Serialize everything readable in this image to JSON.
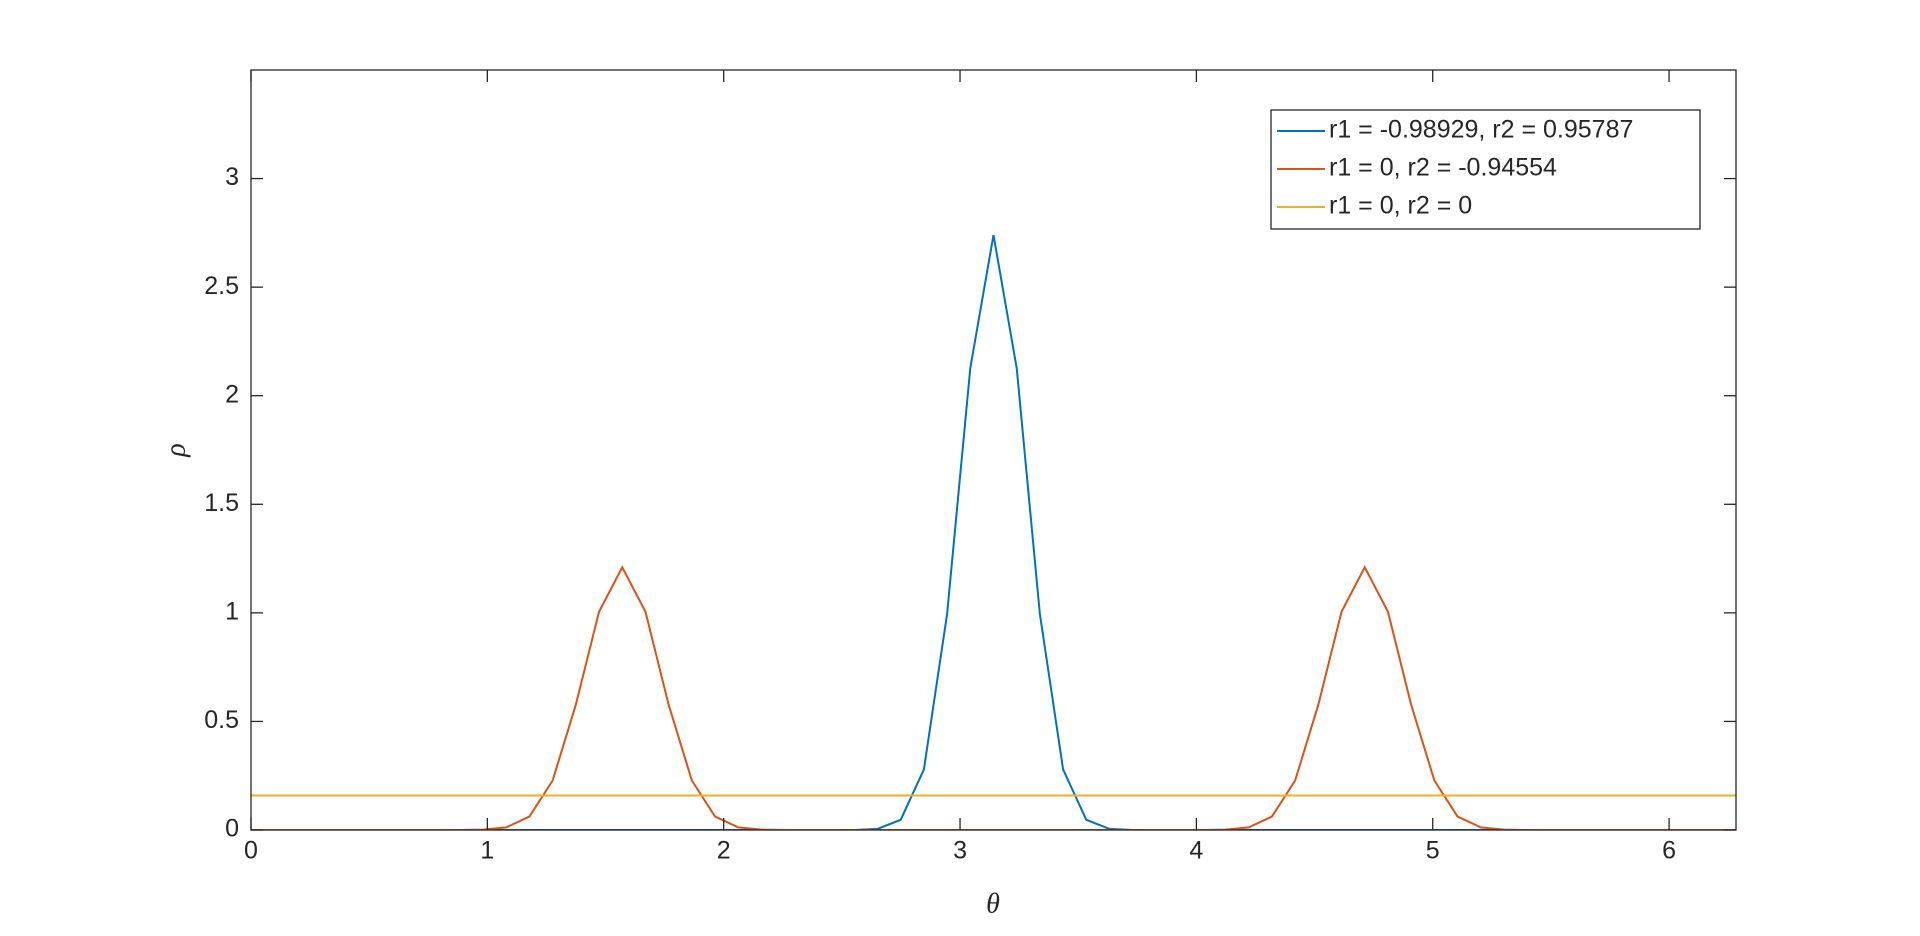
{
  "chart_data": {
    "type": "line",
    "x_label": "θ",
    "y_label": "ρ",
    "xlim": [
      0,
      6.2832
    ],
    "ylim": [
      0,
      3.5
    ],
    "xticks": [
      0,
      1,
      2,
      3,
      4,
      5,
      6
    ],
    "yticks": [
      0,
      0.5,
      1,
      1.5,
      2,
      2.5,
      3
    ],
    "legend": "northeast",
    "x": [
      0,
      0.0982,
      0.1963,
      0.2945,
      0.3927,
      0.4909,
      0.589,
      0.6872,
      0.7854,
      0.8836,
      0.9817,
      1.0799,
      1.1781,
      1.2763,
      1.3744,
      1.4726,
      1.5708,
      1.669,
      1.7671,
      1.8653,
      1.9635,
      2.0617,
      2.1598,
      2.258,
      2.3562,
      2.4544,
      2.5525,
      2.6507,
      2.7489,
      2.8471,
      2.9452,
      3.0434,
      3.1416,
      3.2398,
      3.3379,
      3.4361,
      3.5343,
      3.6325,
      3.7306,
      3.8288,
      3.927,
      4.0252,
      4.1233,
      4.2215,
      4.3197,
      4.4179,
      4.516,
      4.6142,
      4.7124,
      4.8106,
      4.9087,
      5.0069,
      5.1051,
      5.2033,
      5.3014,
      5.3996,
      5.4978,
      5.596,
      5.6941,
      5.7923,
      5.8905,
      5.9887,
      6.0868,
      6.185,
      6.2832
    ],
    "series": [
      {
        "name": "r1 = -0.98929, r2 = 0.95787",
        "color": "#0072bd",
        "values": [
          0,
          0,
          0,
          0,
          0,
          0,
          0,
          0,
          0,
          0,
          0,
          0,
          0,
          0,
          0,
          0,
          0,
          0,
          0,
          0,
          0,
          0,
          0,
          0,
          0,
          0,
          0,
          0.005,
          0.047,
          0.279,
          0.994,
          2.127,
          2.74,
          2.127,
          0.994,
          0.279,
          0.047,
          0.005,
          0,
          0,
          0,
          0,
          0,
          0,
          0,
          0,
          0,
          0,
          0,
          0,
          0,
          0,
          0,
          0,
          0,
          0,
          0,
          0,
          0,
          0,
          0,
          0,
          0,
          0,
          0
        ]
      },
      {
        "name": "r1 = 0, r2 = -0.94554",
        "color": "#d95319",
        "values": [
          0,
          0,
          0,
          0,
          0,
          0,
          0,
          0,
          0,
          0,
          0.002,
          0.012,
          0.062,
          0.228,
          0.577,
          1.005,
          1.21,
          1.005,
          0.577,
          0.228,
          0.062,
          0.012,
          0.002,
          0,
          0,
          0,
          0,
          0,
          0,
          0,
          0,
          0,
          0,
          0,
          0,
          0,
          0,
          0,
          0,
          0,
          0,
          0,
          0.002,
          0.012,
          0.062,
          0.228,
          0.577,
          1.005,
          1.21,
          1.005,
          0.577,
          0.228,
          0.062,
          0.012,
          0.002,
          0,
          0,
          0,
          0,
          0,
          0,
          0,
          0,
          0,
          0
        ]
      },
      {
        "name": "r1 = 0, r2 = 0",
        "color": "#edb120",
        "values": [
          0.159,
          0.159,
          0.159,
          0.159,
          0.159,
          0.159,
          0.159,
          0.159,
          0.159,
          0.159,
          0.159,
          0.159,
          0.159,
          0.159,
          0.159,
          0.159,
          0.159,
          0.159,
          0.159,
          0.159,
          0.159,
          0.159,
          0.159,
          0.159,
          0.159,
          0.159,
          0.159,
          0.159,
          0.159,
          0.159,
          0.159,
          0.159,
          0.159,
          0.159,
          0.159,
          0.159,
          0.159,
          0.159,
          0.159,
          0.159,
          0.159,
          0.159,
          0.159,
          0.159,
          0.159,
          0.159,
          0.159,
          0.159,
          0.159,
          0.159,
          0.159,
          0.159,
          0.159,
          0.159,
          0.159,
          0.159,
          0.159,
          0.159,
          0.159,
          0.159,
          0.159,
          0.159,
          0.159,
          0.159,
          0.159
        ]
      }
    ]
  }
}
